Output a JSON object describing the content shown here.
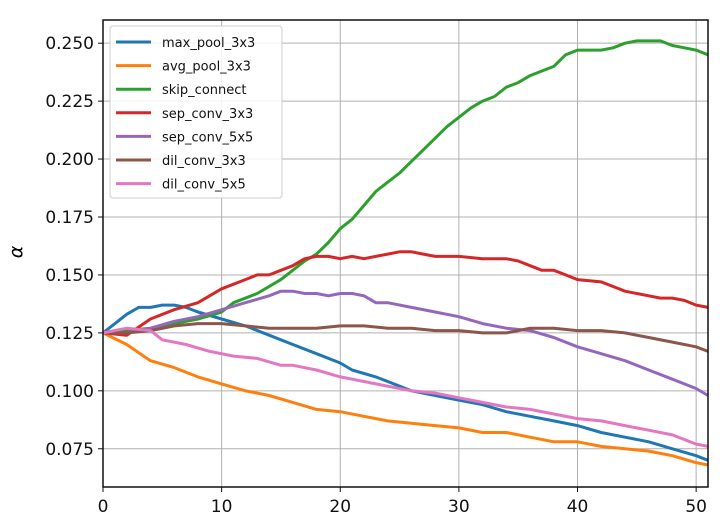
{
  "chart_data": {
    "type": "line",
    "title": "",
    "xlabel": "",
    "ylabel": "α",
    "xlim": [
      0,
      51
    ],
    "ylim": [
      0.0585,
      0.26
    ],
    "grid": true,
    "legend_position": "top-left",
    "xticks": [
      "0",
      "10",
      "20",
      "30",
      "40",
      "50"
    ],
    "xtick_values": [
      0,
      10,
      20,
      30,
      40,
      50
    ],
    "yticks": [
      "0.075",
      "0.100",
      "0.125",
      "0.150",
      "0.175",
      "0.200",
      "0.225",
      "0.250"
    ],
    "ytick_values": [
      0.075,
      0.1,
      0.125,
      0.15,
      0.175,
      0.2,
      0.225,
      0.25
    ],
    "series": [
      {
        "name": "max_pool_3x3",
        "color": "#1f77b4",
        "points": [
          [
            0,
            0.125
          ],
          [
            2,
            0.133
          ],
          [
            3,
            0.136
          ],
          [
            4,
            0.136
          ],
          [
            5,
            0.137
          ],
          [
            6,
            0.137
          ],
          [
            7,
            0.136
          ],
          [
            8,
            0.134
          ],
          [
            10,
            0.131
          ],
          [
            12,
            0.128
          ],
          [
            14,
            0.124
          ],
          [
            16,
            0.12
          ],
          [
            18,
            0.116
          ],
          [
            20,
            0.112
          ],
          [
            21,
            0.109
          ],
          [
            23,
            0.106
          ],
          [
            24,
            0.104
          ],
          [
            26,
            0.1
          ],
          [
            28,
            0.098
          ],
          [
            30,
            0.096
          ],
          [
            32,
            0.094
          ],
          [
            34,
            0.091
          ],
          [
            36,
            0.089
          ],
          [
            38,
            0.087
          ],
          [
            40,
            0.085
          ],
          [
            42,
            0.082
          ],
          [
            44,
            0.08
          ],
          [
            46,
            0.078
          ],
          [
            48,
            0.075
          ],
          [
            50,
            0.072
          ],
          [
            51,
            0.07
          ]
        ]
      },
      {
        "name": "avg_pool_3x3",
        "color": "#ff7f0e",
        "points": [
          [
            0,
            0.125
          ],
          [
            2,
            0.12
          ],
          [
            4,
            0.113
          ],
          [
            6,
            0.11
          ],
          [
            8,
            0.106
          ],
          [
            10,
            0.103
          ],
          [
            12,
            0.1
          ],
          [
            14,
            0.098
          ],
          [
            16,
            0.095
          ],
          [
            18,
            0.092
          ],
          [
            20,
            0.091
          ],
          [
            22,
            0.089
          ],
          [
            24,
            0.087
          ],
          [
            26,
            0.086
          ],
          [
            28,
            0.085
          ],
          [
            30,
            0.084
          ],
          [
            32,
            0.082
          ],
          [
            34,
            0.082
          ],
          [
            36,
            0.08
          ],
          [
            38,
            0.078
          ],
          [
            40,
            0.078
          ],
          [
            42,
            0.076
          ],
          [
            44,
            0.075
          ],
          [
            46,
            0.074
          ],
          [
            48,
            0.072
          ],
          [
            50,
            0.069
          ],
          [
            51,
            0.068
          ]
        ]
      },
      {
        "name": "skip_connect",
        "color": "#2ca02c",
        "points": [
          [
            0,
            0.125
          ],
          [
            2,
            0.126
          ],
          [
            4,
            0.127
          ],
          [
            6,
            0.129
          ],
          [
            8,
            0.131
          ],
          [
            10,
            0.134
          ],
          [
            11,
            0.138
          ],
          [
            13,
            0.142
          ],
          [
            15,
            0.148
          ],
          [
            17,
            0.156
          ],
          [
            18,
            0.159
          ],
          [
            19,
            0.164
          ],
          [
            20,
            0.17
          ],
          [
            21,
            0.174
          ],
          [
            22,
            0.18
          ],
          [
            23,
            0.186
          ],
          [
            24,
            0.19
          ],
          [
            25,
            0.194
          ],
          [
            26,
            0.199
          ],
          [
            27,
            0.204
          ],
          [
            28,
            0.209
          ],
          [
            29,
            0.214
          ],
          [
            30,
            0.218
          ],
          [
            31,
            0.222
          ],
          [
            32,
            0.225
          ],
          [
            33,
            0.227
          ],
          [
            34,
            0.231
          ],
          [
            35,
            0.233
          ],
          [
            36,
            0.236
          ],
          [
            37,
            0.238
          ],
          [
            38,
            0.24
          ],
          [
            39,
            0.245
          ],
          [
            40,
            0.247
          ],
          [
            41,
            0.247
          ],
          [
            42,
            0.247
          ],
          [
            43,
            0.248
          ],
          [
            44,
            0.25
          ],
          [
            45,
            0.251
          ],
          [
            46,
            0.251
          ],
          [
            47,
            0.251
          ],
          [
            48,
            0.249
          ],
          [
            49,
            0.248
          ],
          [
            50,
            0.247
          ],
          [
            51,
            0.245
          ]
        ]
      },
      {
        "name": "sep_conv_3x3",
        "color": "#d62728",
        "points": [
          [
            0,
            0.125
          ],
          [
            2,
            0.124
          ],
          [
            4,
            0.131
          ],
          [
            6,
            0.135
          ],
          [
            8,
            0.138
          ],
          [
            10,
            0.144
          ],
          [
            11,
            0.146
          ],
          [
            12,
            0.148
          ],
          [
            13,
            0.15
          ],
          [
            14,
            0.15
          ],
          [
            15,
            0.152
          ],
          [
            16,
            0.154
          ],
          [
            17,
            0.157
          ],
          [
            18,
            0.158
          ],
          [
            19,
            0.158
          ],
          [
            20,
            0.157
          ],
          [
            21,
            0.158
          ],
          [
            22,
            0.157
          ],
          [
            23,
            0.158
          ],
          [
            24,
            0.159
          ],
          [
            25,
            0.16
          ],
          [
            26,
            0.16
          ],
          [
            27,
            0.159
          ],
          [
            28,
            0.158
          ],
          [
            30,
            0.158
          ],
          [
            32,
            0.157
          ],
          [
            34,
            0.157
          ],
          [
            35,
            0.156
          ],
          [
            36,
            0.154
          ],
          [
            37,
            0.152
          ],
          [
            38,
            0.152
          ],
          [
            39,
            0.15
          ],
          [
            40,
            0.148
          ],
          [
            42,
            0.147
          ],
          [
            43,
            0.145
          ],
          [
            44,
            0.143
          ],
          [
            45,
            0.142
          ],
          [
            46,
            0.141
          ],
          [
            47,
            0.14
          ],
          [
            48,
            0.14
          ],
          [
            49,
            0.139
          ],
          [
            50,
            0.137
          ],
          [
            51,
            0.136
          ]
        ]
      },
      {
        "name": "sep_conv_5x5",
        "color": "#9467bd",
        "points": [
          [
            0,
            0.125
          ],
          [
            2,
            0.125
          ],
          [
            4,
            0.127
          ],
          [
            6,
            0.13
          ],
          [
            8,
            0.132
          ],
          [
            10,
            0.135
          ],
          [
            12,
            0.138
          ],
          [
            14,
            0.141
          ],
          [
            15,
            0.143
          ],
          [
            16,
            0.143
          ],
          [
            17,
            0.142
          ],
          [
            18,
            0.142
          ],
          [
            19,
            0.141
          ],
          [
            20,
            0.142
          ],
          [
            21,
            0.142
          ],
          [
            22,
            0.141
          ],
          [
            23,
            0.138
          ],
          [
            24,
            0.138
          ],
          [
            26,
            0.136
          ],
          [
            28,
            0.134
          ],
          [
            30,
            0.132
          ],
          [
            32,
            0.129
          ],
          [
            34,
            0.127
          ],
          [
            36,
            0.126
          ],
          [
            38,
            0.123
          ],
          [
            40,
            0.119
          ],
          [
            42,
            0.116
          ],
          [
            44,
            0.113
          ],
          [
            46,
            0.109
          ],
          [
            48,
            0.105
          ],
          [
            50,
            0.101
          ],
          [
            51,
            0.098
          ]
        ]
      },
      {
        "name": "dil_conv_3x3",
        "color": "#8c564b",
        "points": [
          [
            0,
            0.125
          ],
          [
            2,
            0.125
          ],
          [
            4,
            0.126
          ],
          [
            6,
            0.128
          ],
          [
            8,
            0.129
          ],
          [
            10,
            0.129
          ],
          [
            12,
            0.128
          ],
          [
            14,
            0.127
          ],
          [
            16,
            0.127
          ],
          [
            18,
            0.127
          ],
          [
            20,
            0.128
          ],
          [
            22,
            0.128
          ],
          [
            24,
            0.127
          ],
          [
            26,
            0.127
          ],
          [
            28,
            0.126
          ],
          [
            30,
            0.126
          ],
          [
            32,
            0.125
          ],
          [
            34,
            0.125
          ],
          [
            35,
            0.126
          ],
          [
            36,
            0.127
          ],
          [
            38,
            0.127
          ],
          [
            40,
            0.126
          ],
          [
            42,
            0.126
          ],
          [
            44,
            0.125
          ],
          [
            46,
            0.123
          ],
          [
            48,
            0.121
          ],
          [
            50,
            0.119
          ],
          [
            51,
            0.117
          ]
        ]
      },
      {
        "name": "dil_conv_5x5",
        "color": "#e377c2",
        "points": [
          [
            0,
            0.125
          ],
          [
            2,
            0.127
          ],
          [
            4,
            0.126
          ],
          [
            5,
            0.122
          ],
          [
            7,
            0.12
          ],
          [
            9,
            0.117
          ],
          [
            11,
            0.115
          ],
          [
            13,
            0.114
          ],
          [
            15,
            0.111
          ],
          [
            16,
            0.111
          ],
          [
            18,
            0.109
          ],
          [
            20,
            0.106
          ],
          [
            22,
            0.104
          ],
          [
            24,
            0.102
          ],
          [
            26,
            0.1
          ],
          [
            28,
            0.099
          ],
          [
            30,
            0.097
          ],
          [
            32,
            0.095
          ],
          [
            34,
            0.093
          ],
          [
            36,
            0.092
          ],
          [
            38,
            0.09
          ],
          [
            40,
            0.088
          ],
          [
            42,
            0.087
          ],
          [
            44,
            0.085
          ],
          [
            46,
            0.083
          ],
          [
            48,
            0.081
          ],
          [
            50,
            0.077
          ],
          [
            51,
            0.076
          ]
        ]
      }
    ]
  }
}
